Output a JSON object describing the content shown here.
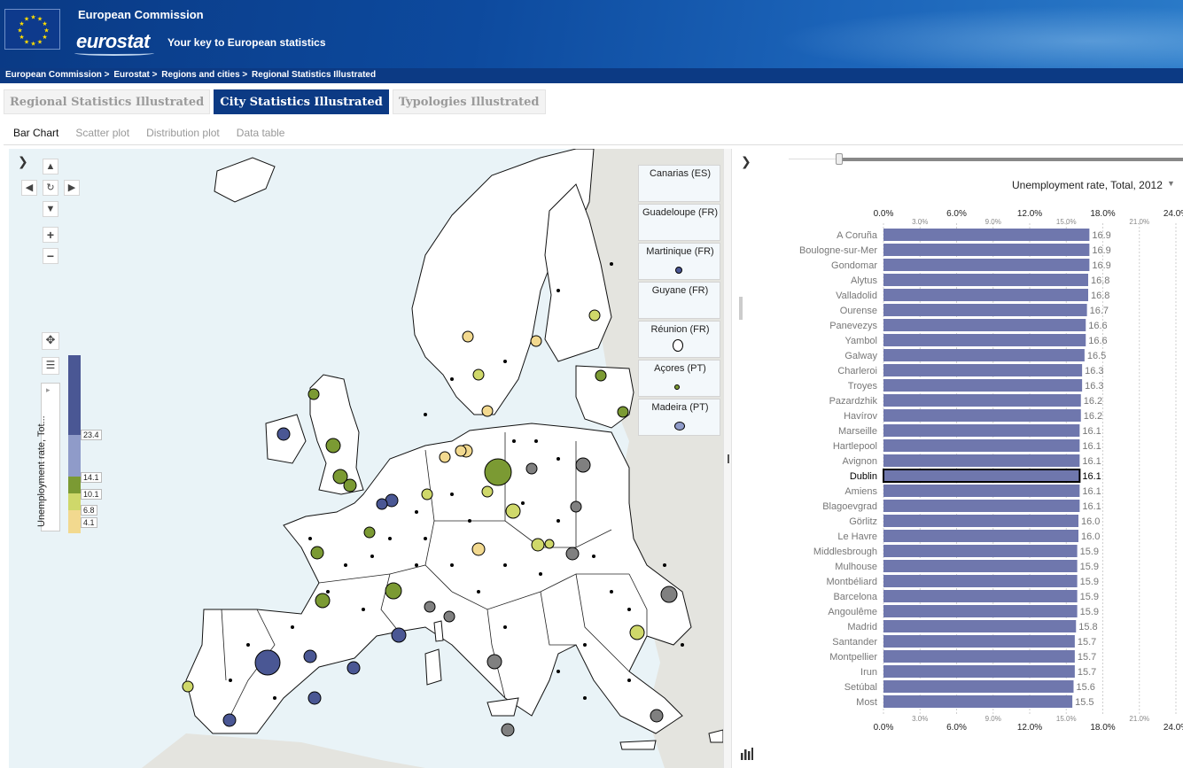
{
  "header": {
    "commission": "European Commission",
    "logo": "eurostat",
    "tagline": "Your key to European statistics"
  },
  "breadcrumb": [
    "European Commission >",
    "Eurostat >",
    "Regions and cities >",
    "Regional Statistics Illustrated"
  ],
  "main_tabs": [
    {
      "label": "Regional Statistics Illustrated",
      "active": false
    },
    {
      "label": "City Statistics Illustrated",
      "active": true
    },
    {
      "label": "Typologies Illustrated",
      "active": false
    }
  ],
  "sub_tabs": [
    {
      "label": "Bar Chart",
      "active": true
    },
    {
      "label": "Scatter plot",
      "active": false
    },
    {
      "label": "Distribution plot",
      "active": false
    },
    {
      "label": "Data table",
      "active": false
    }
  ],
  "map": {
    "collapse_glyph": "❯",
    "legend": {
      "title": "Unemployment rate, Tot...",
      "classes": [
        {
          "upper": "23.4",
          "color": "#4a5794"
        },
        {
          "upper": "14.1",
          "color": "#8f9bc9"
        },
        {
          "upper": "10.1",
          "color": "#7b9a33"
        },
        {
          "upper": "6.8",
          "color": "#cfd86a"
        },
        {
          "upper": "4.1",
          "color": "#f2d98f"
        }
      ]
    },
    "insets": [
      "Canarias (ES)",
      "Guadeloupe (FR)",
      "Martinique (FR)",
      "Guyane (FR)",
      "Réunion (FR)",
      "Açores (PT)",
      "Madeira (PT)"
    ],
    "controls": {
      "up": "▲",
      "down": "▼",
      "left": "◀",
      "right": "▶",
      "reset": "↻",
      "zoom_in": "+",
      "zoom_out": "−",
      "pan": "✥",
      "legend_toggle": "☰",
      "legend_expand": "▸"
    }
  },
  "chart": {
    "collapse_glyph": "❯",
    "indicator": "Unemployment rate, Total, 2012",
    "indicator_arrow": "▼"
  },
  "chart_data": {
    "type": "bar",
    "orientation": "horizontal",
    "title": "Unemployment rate, Total, 2012",
    "xlim": [
      0,
      24
    ],
    "major_ticks": [
      "0.0%",
      "6.0%",
      "12.0%",
      "18.0%",
      "24.0%"
    ],
    "minor_ticks": [
      "3.0%",
      "9.0%",
      "15.0%",
      "21.0%"
    ],
    "highlighted": "Dublin",
    "bar_color": "#6f77ad",
    "categories": [
      "A Coruña",
      "Boulogne-sur-Mer",
      "Gondomar",
      "Alytus",
      "Valladolid",
      "Ourense",
      "Panevezys",
      "Yambol",
      "Galway",
      "Charleroi",
      "Troyes",
      "Pazardzhik",
      "Havírov",
      "Marseille",
      "Hartlepool",
      "Avignon",
      "Dublin",
      "Amiens",
      "Blagoevgrad",
      "Görlitz",
      "Le Havre",
      "Middlesbrough",
      "Mulhouse",
      "Montbéliard",
      "Barcelona",
      "Angoulême",
      "Madrid",
      "Santander",
      "Montpellier",
      "Irun",
      "Setúbal",
      "Most"
    ],
    "values": [
      16.9,
      16.9,
      16.9,
      16.8,
      16.8,
      16.7,
      16.6,
      16.6,
      16.5,
      16.3,
      16.3,
      16.2,
      16.2,
      16.1,
      16.1,
      16.1,
      16.1,
      16.1,
      16.1,
      16.0,
      16.0,
      15.9,
      15.9,
      15.9,
      15.9,
      15.9,
      15.8,
      15.7,
      15.7,
      15.7,
      15.6,
      15.5
    ],
    "labels": [
      "16.9",
      "16.9",
      "16.9",
      "16.8",
      "16.8",
      "16.7",
      "16.6",
      "16.6",
      "16.5",
      "16.3",
      "16.3",
      "16.2",
      "16.2",
      "16.1",
      "16.1",
      "16.1",
      "16.1",
      "16.1",
      "16.1",
      "16.0",
      "16.0",
      "15.9",
      "15.9",
      "15.9",
      "15.9",
      "15.9",
      "15.8",
      "15.7",
      "15.7",
      "15.7",
      "15.6",
      "15.5"
    ]
  }
}
